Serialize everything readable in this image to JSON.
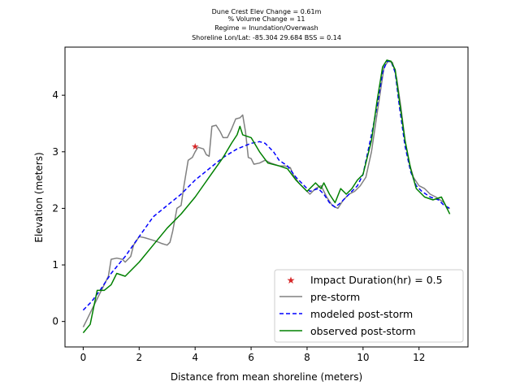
{
  "chart_data": {
    "type": "line",
    "title_lines": [
      "Dune Crest Elev Change = 0.61m",
      "% Volume Change = 11",
      "Regime = Inundation/Overwash",
      "Shoreline Lon/Lat: -85.304 29.684   BSS = 0.14"
    ],
    "xlabel": "Distance from mean shoreline (meters)",
    "ylabel": "Elevation (meters)",
    "xlim": [
      -0.65,
      13.75
    ],
    "ylim": [
      -0.45,
      4.85
    ],
    "xticks": [
      0,
      2,
      4,
      6,
      8,
      10,
      12
    ],
    "yticks": [
      0,
      1,
      2,
      3,
      4
    ],
    "grid": false,
    "legend_position": "lower-right",
    "colors": {
      "pre": "#808080",
      "modeled": "#0000ff",
      "observed": "#008000",
      "impact": "#d62728"
    },
    "impact_marker": {
      "name": "Impact Duration(hr) = 0.5",
      "x": 4.0,
      "y": 3.1
    },
    "series": [
      {
        "name": "pre-storm",
        "style": "solid",
        "points": [
          [
            0,
            -0.1
          ],
          [
            0.15,
            0.05
          ],
          [
            0.3,
            0.2
          ],
          [
            0.5,
            0.4
          ],
          [
            0.7,
            0.6
          ],
          [
            0.9,
            0.8
          ],
          [
            1.0,
            1.1
          ],
          [
            1.2,
            1.12
          ],
          [
            1.4,
            1.1
          ],
          [
            1.5,
            1.05
          ],
          [
            1.7,
            1.15
          ],
          [
            1.8,
            1.35
          ],
          [
            2.0,
            1.5
          ],
          [
            2.2,
            1.48
          ],
          [
            2.4,
            1.45
          ],
          [
            2.6,
            1.42
          ],
          [
            2.8,
            1.38
          ],
          [
            3.0,
            1.35
          ],
          [
            3.1,
            1.4
          ],
          [
            3.2,
            1.6
          ],
          [
            3.35,
            2.0
          ],
          [
            3.5,
            2.05
          ],
          [
            3.6,
            2.4
          ],
          [
            3.75,
            2.85
          ],
          [
            3.9,
            2.9
          ],
          [
            4.0,
            3.0
          ],
          [
            4.1,
            3.08
          ],
          [
            4.3,
            3.05
          ],
          [
            4.4,
            2.95
          ],
          [
            4.5,
            2.92
          ],
          [
            4.6,
            3.45
          ],
          [
            4.75,
            3.47
          ],
          [
            4.9,
            3.35
          ],
          [
            5.0,
            3.25
          ],
          [
            5.15,
            3.25
          ],
          [
            5.3,
            3.4
          ],
          [
            5.45,
            3.58
          ],
          [
            5.6,
            3.6
          ],
          [
            5.7,
            3.65
          ],
          [
            5.8,
            3.35
          ],
          [
            5.9,
            2.9
          ],
          [
            6.0,
            2.88
          ],
          [
            6.1,
            2.78
          ],
          [
            6.3,
            2.8
          ],
          [
            6.5,
            2.85
          ],
          [
            6.7,
            2.8
          ],
          [
            7.0,
            2.75
          ],
          [
            7.2,
            2.75
          ],
          [
            7.4,
            2.72
          ],
          [
            7.5,
            2.6
          ],
          [
            7.7,
            2.45
          ],
          [
            7.9,
            2.35
          ],
          [
            8.1,
            2.25
          ],
          [
            8.3,
            2.35
          ],
          [
            8.5,
            2.4
          ],
          [
            8.7,
            2.2
          ],
          [
            8.9,
            2.05
          ],
          [
            9.1,
            2.0
          ],
          [
            9.3,
            2.15
          ],
          [
            9.5,
            2.25
          ],
          [
            9.7,
            2.3
          ],
          [
            9.9,
            2.4
          ],
          [
            10.1,
            2.55
          ],
          [
            10.3,
            3.0
          ],
          [
            10.45,
            3.5
          ],
          [
            10.6,
            4.0
          ],
          [
            10.75,
            4.5
          ],
          [
            10.9,
            4.6
          ],
          [
            11.05,
            4.58
          ],
          [
            11.2,
            4.3
          ],
          [
            11.35,
            3.8
          ],
          [
            11.5,
            3.2
          ],
          [
            11.65,
            2.8
          ],
          [
            11.8,
            2.55
          ],
          [
            12.0,
            2.4
          ],
          [
            12.2,
            2.35
          ],
          [
            12.4,
            2.25
          ],
          [
            12.6,
            2.2
          ],
          [
            12.75,
            2.15
          ],
          [
            12.9,
            2.1
          ],
          [
            13.0,
            2.0
          ],
          [
            13.1,
            2.0
          ]
        ]
      },
      {
        "name": "modeled post-storm",
        "style": "dashed",
        "points": [
          [
            0,
            0.2
          ],
          [
            0.3,
            0.35
          ],
          [
            0.6,
            0.55
          ],
          [
            1.0,
            0.85
          ],
          [
            1.5,
            1.15
          ],
          [
            2.0,
            1.5
          ],
          [
            2.5,
            1.85
          ],
          [
            3.0,
            2.05
          ],
          [
            3.5,
            2.25
          ],
          [
            4.0,
            2.5
          ],
          [
            4.5,
            2.7
          ],
          [
            5.0,
            2.9
          ],
          [
            5.5,
            3.05
          ],
          [
            6.0,
            3.15
          ],
          [
            6.3,
            3.18
          ],
          [
            6.5,
            3.15
          ],
          [
            6.8,
            3.0
          ],
          [
            7.0,
            2.85
          ],
          [
            7.3,
            2.75
          ],
          [
            7.6,
            2.55
          ],
          [
            7.9,
            2.4
          ],
          [
            8.1,
            2.3
          ],
          [
            8.4,
            2.35
          ],
          [
            8.6,
            2.25
          ],
          [
            8.8,
            2.1
          ],
          [
            9.0,
            2.02
          ],
          [
            9.2,
            2.1
          ],
          [
            9.5,
            2.25
          ],
          [
            9.8,
            2.4
          ],
          [
            10.0,
            2.6
          ],
          [
            10.3,
            3.3
          ],
          [
            10.5,
            3.8
          ],
          [
            10.7,
            4.4
          ],
          [
            10.85,
            4.6
          ],
          [
            11.0,
            4.6
          ],
          [
            11.15,
            4.4
          ],
          [
            11.3,
            3.8
          ],
          [
            11.5,
            3.1
          ],
          [
            11.7,
            2.65
          ],
          [
            11.9,
            2.4
          ],
          [
            12.1,
            2.3
          ],
          [
            12.4,
            2.2
          ],
          [
            12.7,
            2.15
          ],
          [
            12.9,
            2.05
          ],
          [
            13.1,
            2.0
          ]
        ]
      },
      {
        "name": "observed post-storm",
        "style": "solid",
        "points": [
          [
            0,
            -0.2
          ],
          [
            0.25,
            -0.05
          ],
          [
            0.5,
            0.55
          ],
          [
            0.75,
            0.55
          ],
          [
            1.0,
            0.65
          ],
          [
            1.2,
            0.85
          ],
          [
            1.5,
            0.8
          ],
          [
            2.0,
            1.05
          ],
          [
            2.5,
            1.35
          ],
          [
            3.0,
            1.65
          ],
          [
            3.5,
            1.9
          ],
          [
            4.0,
            2.2
          ],
          [
            4.5,
            2.55
          ],
          [
            5.0,
            2.9
          ],
          [
            5.3,
            3.15
          ],
          [
            5.5,
            3.3
          ],
          [
            5.6,
            3.45
          ],
          [
            5.7,
            3.3
          ],
          [
            6.0,
            3.25
          ],
          [
            6.3,
            3.0
          ],
          [
            6.6,
            2.8
          ],
          [
            7.0,
            2.75
          ],
          [
            7.3,
            2.7
          ],
          [
            7.6,
            2.5
          ],
          [
            7.9,
            2.35
          ],
          [
            8.0,
            2.3
          ],
          [
            8.3,
            2.45
          ],
          [
            8.5,
            2.35
          ],
          [
            8.6,
            2.45
          ],
          [
            8.8,
            2.25
          ],
          [
            9.0,
            2.1
          ],
          [
            9.2,
            2.35
          ],
          [
            9.4,
            2.25
          ],
          [
            9.6,
            2.35
          ],
          [
            9.8,
            2.5
          ],
          [
            10.0,
            2.6
          ],
          [
            10.3,
            3.2
          ],
          [
            10.5,
            3.9
          ],
          [
            10.7,
            4.5
          ],
          [
            10.85,
            4.62
          ],
          [
            11.0,
            4.6
          ],
          [
            11.15,
            4.45
          ],
          [
            11.3,
            3.9
          ],
          [
            11.5,
            3.2
          ],
          [
            11.7,
            2.7
          ],
          [
            11.9,
            2.35
          ],
          [
            12.2,
            2.2
          ],
          [
            12.5,
            2.15
          ],
          [
            12.8,
            2.2
          ],
          [
            12.95,
            2.05
          ],
          [
            13.1,
            1.9
          ]
        ]
      }
    ]
  }
}
